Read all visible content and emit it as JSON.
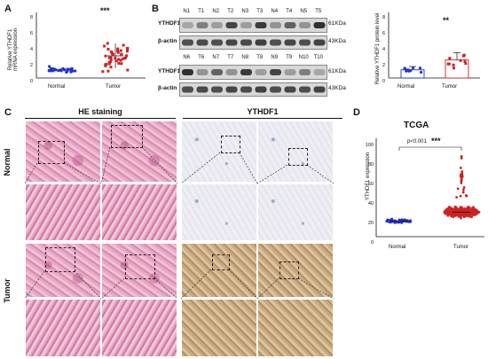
{
  "panels": {
    "A": "A",
    "B": "B",
    "C": "C",
    "D": "D"
  },
  "panelA": {
    "ylabel_line1": "Relative YTHDF1",
    "ylabel_line2": "mRNA expression",
    "yticks": [
      "8",
      "6",
      "4",
      "2",
      "0"
    ],
    "stars": "***",
    "colors": {
      "normal": "#2233cc",
      "tumor": "#cc2222"
    }
  },
  "panelB": {
    "row1_lanes": [
      "N1",
      "T1",
      "N2",
      "T2",
      "N3",
      "T3",
      "N4",
      "T4",
      "N5",
      "T5"
    ],
    "row2_lanes": [
      "N6",
      "T6",
      "N7",
      "T7",
      "N8",
      "T8",
      "N9",
      "T9",
      "N10",
      "T10"
    ],
    "target": "YTHDF1",
    "control": "β-actin",
    "target_kda": "61KDa",
    "control_kda": "43KDa",
    "bar_ylabel": "Relative YTHDF1 protein level",
    "yticks": [
      "8",
      "6",
      "4",
      "2",
      "0"
    ],
    "stars": "**"
  },
  "panelC": {
    "header_he": "HE staining",
    "header_ihc": "YTHDF1",
    "row_normal": "Normal",
    "row_tumor": "Tumor"
  },
  "panelD": {
    "title": "TCGA",
    "ylabel": "YTHDF1 expression",
    "yticks": [
      "100",
      "80",
      "60",
      "40",
      "20",
      "0"
    ],
    "pvalue": "p<0.001",
    "stars": "***"
  },
  "categories": {
    "normal": "Normal",
    "tumor": "Tumor"
  },
  "chart_data": [
    {
      "type": "scatter",
      "title": "",
      "ylabel": "Relative YTHDF1 mRNA expression",
      "categories": [
        "Normal",
        "Tumor"
      ],
      "ylim": [
        0,
        8
      ],
      "series": [
        {
          "name": "Normal",
          "mean": 1.0,
          "sd": 0.3,
          "n": 30
        },
        {
          "name": "Tumor",
          "mean": 2.7,
          "sd": 1.5,
          "n": 40
        }
      ],
      "annotation": "***"
    },
    {
      "type": "bar",
      "title": "",
      "ylabel": "Relative YTHDF1 protein level",
      "categories": [
        "Normal",
        "Tumor"
      ],
      "values": [
        1.0,
        2.2
      ],
      "ylim": [
        0,
        8
      ],
      "annotation": "**"
    },
    {
      "type": "scatter",
      "title": "TCGA",
      "ylabel": "YTHDF1 expression",
      "categories": [
        "Normal",
        "Tumor"
      ],
      "ylim": [
        0,
        100
      ],
      "series": [
        {
          "name": "Normal",
          "median": 16,
          "range": [
            13,
            20
          ]
        },
        {
          "name": "Tumor",
          "median": 25,
          "range": [
            10,
            85
          ]
        }
      ],
      "annotation": "p<0.001 ***"
    }
  ]
}
